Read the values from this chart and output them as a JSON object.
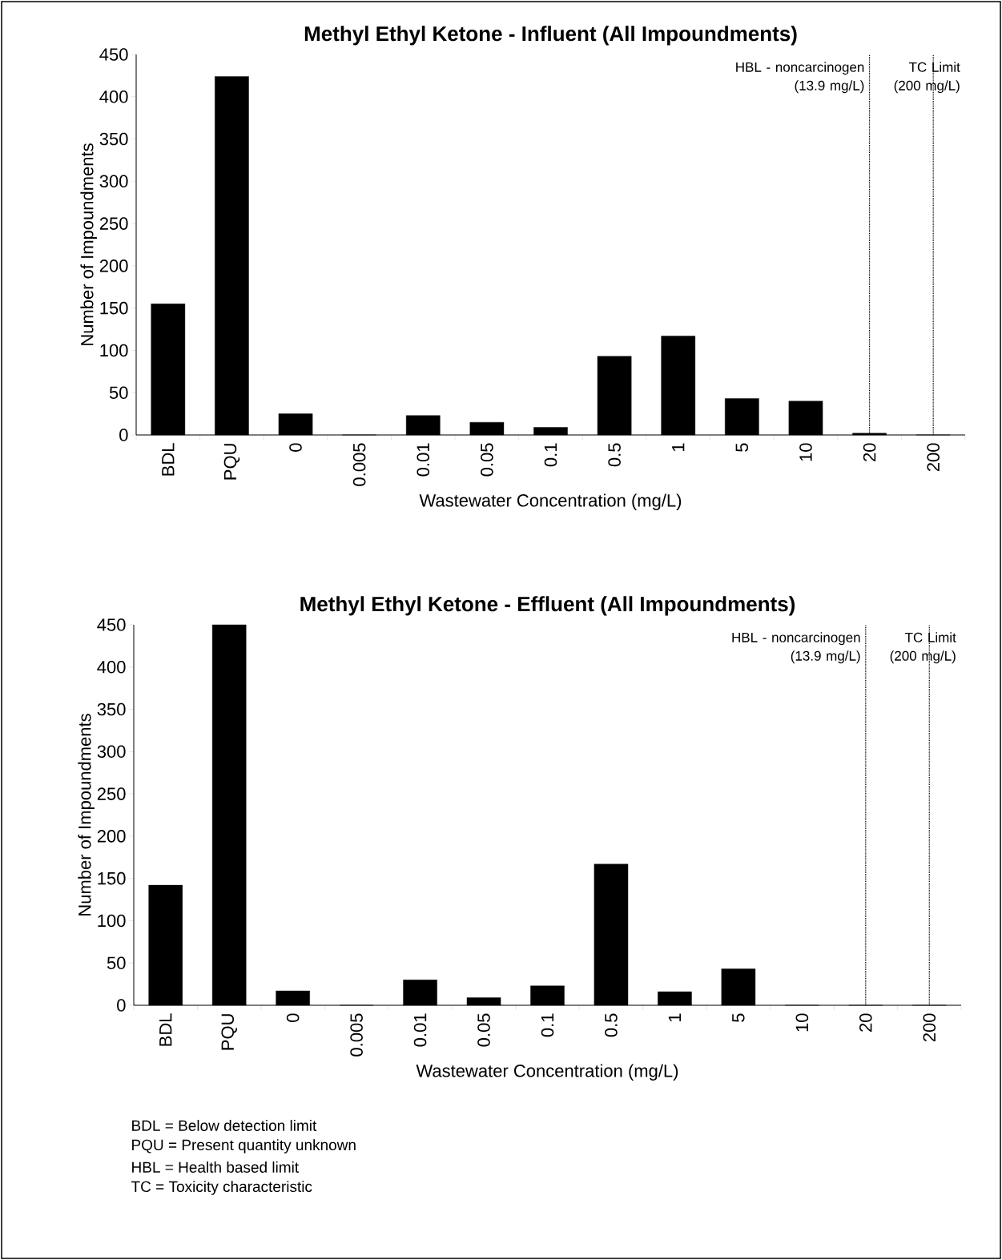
{
  "chart_data": [
    {
      "type": "bar",
      "title": "Methyl Ethyl Ketone - Influent (All Impoundments)",
      "xlabel": "Wastewater Concentration (mg/L)",
      "ylabel": "Number of Impoundments",
      "categories": [
        "BDL",
        "PQU",
        "0",
        "0.005",
        "0.01",
        "0.05",
        "0.1",
        "0.5",
        "1",
        "5",
        "10",
        "20",
        "200"
      ],
      "values": [
        155,
        424,
        25,
        0,
        23,
        15,
        9,
        93,
        117,
        43,
        40,
        2,
        0
      ],
      "color": "#000000",
      "ylim": [
        0,
        450
      ],
      "yticks": [
        0,
        50,
        100,
        150,
        200,
        250,
        300,
        350,
        400,
        450
      ],
      "grid": false,
      "ref_lines": [
        {
          "axis": "x",
          "value": "20",
          "label": "HBL - noncarcinogen (13.9 mg/L)",
          "line_style": "dotted"
        },
        {
          "axis": "x",
          "value": "200",
          "label": "TC Limit (200 mg/L)",
          "line_style": "dotted"
        }
      ]
    },
    {
      "type": "bar",
      "title": "Methyl Ethyl Ketone - Effluent (All Impoundments)",
      "xlabel": "Wastewater Concentration (mg/L)",
      "ylabel": "Number of Impoundments",
      "categories": [
        "BDL",
        "PQU",
        "0",
        "0.005",
        "0.01",
        "0.05",
        "0.1",
        "0.5",
        "1",
        "5",
        "10",
        "20",
        "200"
      ],
      "values": [
        142,
        450,
        17,
        0,
        30,
        9,
        23,
        167,
        16,
        43,
        0,
        0,
        0
      ],
      "color": "#000000",
      "ylim": [
        0,
        450
      ],
      "yticks": [
        0,
        50,
        100,
        150,
        200,
        250,
        300,
        350,
        400,
        450
      ],
      "grid": false,
      "ref_lines": [
        {
          "axis": "x",
          "value": "20",
          "label": "HBL - noncarcinogen (13.9 mg/L)",
          "line_style": "dotted"
        },
        {
          "axis": "x",
          "value": "200",
          "label": "TC Limit (200 mg/L)",
          "line_style": "dotted"
        }
      ],
      "annotations": [
        "BDL = Below detection limit",
        "PQU = Present quantity unknown",
        "HBL = Health based limit",
        "TC = Toxicity characteristic"
      ]
    }
  ]
}
